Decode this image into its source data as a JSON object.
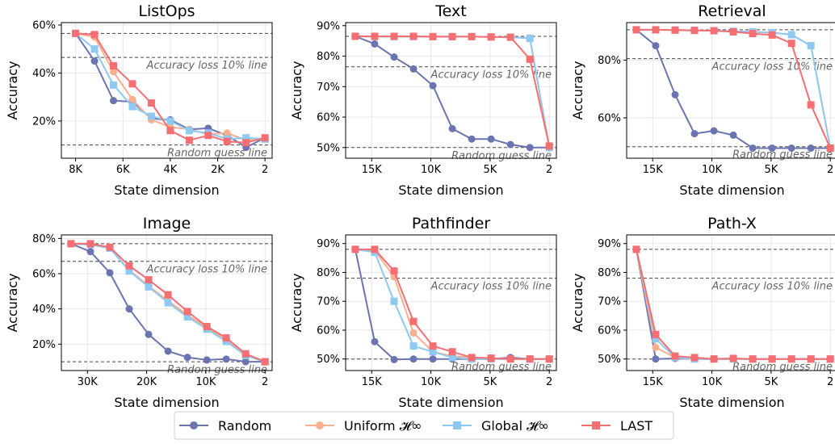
{
  "chart_data": [
    {
      "type": "line",
      "title": "ListOps",
      "xlabel": "State dimension",
      "ylabel": "Accuracy",
      "xlim": [
        8600,
        -300
      ],
      "ylim": [
        4.5,
        61
      ],
      "x_ticks": [
        8000,
        6000,
        4000,
        2000,
        2
      ],
      "x_tick_labels": [
        "8K",
        "6K",
        "4K",
        "2K",
        "2"
      ],
      "y_ticks": [
        20,
        40,
        60
      ],
      "y_tick_labels": [
        "20%",
        "40%",
        "60%"
      ],
      "reference_lines": [
        {
          "y": 56.5,
          "label": ""
        },
        {
          "y": 46.5,
          "label": "Accuracy loss 10% line"
        },
        {
          "y": 10,
          "label": "Random guess line"
        }
      ],
      "x": [
        8000,
        7200,
        6400,
        5600,
        4800,
        4000,
        3200,
        2400,
        1600,
        800,
        2
      ],
      "series": [
        {
          "name": "Random",
          "values": [
            56.5,
            45,
            28.5,
            28,
            21,
            20.5,
            16.5,
            17,
            14,
            9,
            13
          ]
        },
        {
          "name": "Uniform",
          "values": [
            56.5,
            55,
            40.5,
            29,
            20.5,
            17.5,
            16.5,
            14.5,
            15,
            12,
            12.5
          ]
        },
        {
          "name": "Global",
          "values": [
            56.5,
            50,
            35,
            26,
            22,
            20,
            16,
            15,
            12.5,
            13,
            12.5
          ]
        },
        {
          "name": "LAST",
          "values": [
            56.5,
            56,
            43,
            35.5,
            27.5,
            16,
            12,
            14,
            11.5,
            11,
            13
          ]
        }
      ]
    },
    {
      "type": "line",
      "title": "Text",
      "xlabel": "State dimension",
      "ylabel": "Accuracy",
      "xlim": [
        17200,
        -600
      ],
      "ylim": [
        46.5,
        91
      ],
      "x_ticks": [
        15000,
        10000,
        5000,
        2
      ],
      "x_tick_labels": [
        "15K",
        "10K",
        "5K",
        "2"
      ],
      "y_ticks": [
        50,
        60,
        70,
        80,
        90
      ],
      "y_tick_labels": [
        "50%",
        "60%",
        "70%",
        "80%",
        "90%"
      ],
      "reference_lines": [
        {
          "y": 86.5,
          "label": ""
        },
        {
          "y": 76.5,
          "label": "Accuracy loss 10% line"
        },
        {
          "y": 50,
          "label": "Random guess line"
        }
      ],
      "x": [
        16384,
        14746,
        13107,
        11469,
        9830,
        8192,
        6554,
        4915,
        3277,
        1638,
        2
      ],
      "series": [
        {
          "name": "Random",
          "values": [
            86.5,
            84,
            79.7,
            75.8,
            70.3,
            56.2,
            52.8,
            52.8,
            51,
            50,
            50
          ]
        },
        {
          "name": "Uniform",
          "values": [
            86.5,
            86.4,
            86.4,
            86.4,
            86.4,
            86.4,
            86.4,
            86.3,
            86.2,
            86,
            50
          ]
        },
        {
          "name": "Global",
          "values": [
            86.5,
            86.4,
            86.4,
            86.4,
            86.4,
            86.4,
            86.4,
            86.3,
            86.2,
            85.8,
            50
          ]
        },
        {
          "name": "LAST",
          "values": [
            86.5,
            86.5,
            86.5,
            86.5,
            86.4,
            86.4,
            86.4,
            86.3,
            86.2,
            79,
            50.5
          ]
        }
      ]
    },
    {
      "type": "line",
      "title": "Retrieval",
      "xlabel": "State dimension",
      "ylabel": "Accuracy",
      "xlim": [
        17200,
        -600
      ],
      "ylim": [
        46,
        93
      ],
      "x_ticks": [
        15000,
        10000,
        5000,
        2
      ],
      "x_tick_labels": [
        "15K",
        "10K",
        "5K",
        "2"
      ],
      "y_ticks": [
        60,
        80
      ],
      "y_tick_labels": [
        "60%",
        "80%"
      ],
      "reference_lines": [
        {
          "y": 90.5,
          "label": ""
        },
        {
          "y": 80.5,
          "label": "Accuracy loss 10% line"
        },
        {
          "y": 50,
          "label": "Random guess line"
        }
      ],
      "x": [
        16384,
        14746,
        13107,
        11469,
        9830,
        8192,
        6554,
        4915,
        3277,
        1638,
        2
      ],
      "series": [
        {
          "name": "Random",
          "values": [
            90.5,
            85,
            68,
            54.5,
            55.5,
            54,
            49.5,
            49.5,
            49.5,
            49.5,
            49.5
          ]
        },
        {
          "name": "Uniform",
          "values": [
            90.5,
            90.5,
            90.4,
            90.3,
            90.2,
            90,
            89.8,
            89.5,
            88.8,
            85,
            49.5
          ]
        },
        {
          "name": "Global",
          "values": [
            90.5,
            90.5,
            90.4,
            90.3,
            90.2,
            90,
            89.8,
            89.5,
            88.8,
            85,
            49.5
          ]
        },
        {
          "name": "LAST",
          "values": [
            90.5,
            90.5,
            90.4,
            90.3,
            90.2,
            89.8,
            89.2,
            88.7,
            85.8,
            64.5,
            49.5
          ]
        }
      ]
    },
    {
      "type": "line",
      "title": "Image",
      "xlabel": "State dimension",
      "ylabel": "Accuracy",
      "xlim": [
        34400,
        -1200
      ],
      "ylim": [
        5,
        82
      ],
      "x_ticks": [
        30000,
        20000,
        10000,
        2
      ],
      "x_tick_labels": [
        "30K",
        "20K",
        "10K",
        "2"
      ],
      "y_ticks": [
        20,
        40,
        60,
        80
      ],
      "y_tick_labels": [
        "20%",
        "40%",
        "60%",
        "80%"
      ],
      "reference_lines": [
        {
          "y": 77,
          "label": ""
        },
        {
          "y": 67,
          "label": "Accuracy loss 10% line"
        },
        {
          "y": 10,
          "label": "Random guess line"
        }
      ],
      "x": [
        32768,
        29491,
        26214,
        22938,
        19661,
        16384,
        13107,
        9830,
        6554,
        3277,
        2
      ],
      "series": [
        {
          "name": "Random",
          "values": [
            77,
            72.5,
            60.5,
            40,
            25.5,
            16,
            12.5,
            11,
            11.5,
            10,
            10
          ]
        },
        {
          "name": "Uniform",
          "values": [
            77,
            76.5,
            74.5,
            62,
            53,
            44.5,
            36.5,
            29.5,
            22,
            14,
            10
          ]
        },
        {
          "name": "Global",
          "values": [
            77,
            76.5,
            74.5,
            61.5,
            52.5,
            43.5,
            35.5,
            28.5,
            21.5,
            13.5,
            10
          ]
        },
        {
          "name": "LAST",
          "values": [
            77,
            77,
            75,
            64.5,
            56.5,
            48,
            38.5,
            30,
            23.5,
            14.5,
            10
          ]
        }
      ]
    },
    {
      "type": "line",
      "title": "Pathfinder",
      "xlabel": "State dimension",
      "ylabel": "Accuracy",
      "xlim": [
        17200,
        -600
      ],
      "ylim": [
        46,
        93
      ],
      "x_ticks": [
        15000,
        10000,
        5000,
        2
      ],
      "x_tick_labels": [
        "15K",
        "10K",
        "5K",
        "2"
      ],
      "y_ticks": [
        50,
        60,
        70,
        80,
        90
      ],
      "y_tick_labels": [
        "50%",
        "60%",
        "70%",
        "80%",
        "90%"
      ],
      "reference_lines": [
        {
          "y": 88,
          "label": ""
        },
        {
          "y": 78,
          "label": "Accuracy loss 10% line"
        },
        {
          "y": 50,
          "label": "Random guess line"
        }
      ],
      "x": [
        16384,
        14746,
        13107,
        11469,
        9830,
        8192,
        6554,
        4915,
        3277,
        1638,
        2
      ],
      "series": [
        {
          "name": "Random",
          "values": [
            88,
            56,
            49.8,
            50,
            50,
            50,
            50,
            50,
            50.5,
            50,
            50
          ]
        },
        {
          "name": "Uniform",
          "values": [
            88,
            87.5,
            78.5,
            59,
            52.5,
            51,
            50.5,
            50,
            50,
            50,
            50
          ]
        },
        {
          "name": "Global",
          "values": [
            88,
            87,
            70,
            54.5,
            52.5,
            50.5,
            50,
            50,
            50,
            50,
            50
          ]
        },
        {
          "name": "LAST",
          "values": [
            88,
            88,
            80.5,
            63,
            54.5,
            52.5,
            50.5,
            50.3,
            50,
            50,
            50
          ]
        }
      ]
    },
    {
      "type": "line",
      "title": "Path-X",
      "xlabel": "State dimension",
      "ylabel": "Accuracy",
      "xlim": [
        17200,
        -600
      ],
      "ylim": [
        46,
        93
      ],
      "x_ticks": [
        15000,
        10000,
        5000,
        2
      ],
      "x_tick_labels": [
        "15K",
        "10K",
        "5K",
        "2"
      ],
      "y_ticks": [
        50,
        60,
        70,
        80,
        90
      ],
      "y_tick_labels": [
        "50%",
        "60%",
        "70%",
        "80%",
        "90%"
      ],
      "reference_lines": [
        {
          "y": 88,
          "label": ""
        },
        {
          "y": 78,
          "label": "Accuracy loss 10% line"
        },
        {
          "y": 50,
          "label": "Random guess line"
        }
      ],
      "x": [
        16384,
        14746,
        13107,
        11469,
        9830,
        8192,
        6554,
        4915,
        3277,
        1638,
        2
      ],
      "series": [
        {
          "name": "Random",
          "values": [
            88,
            50,
            50.2,
            50,
            50,
            50,
            50,
            50,
            50,
            50,
            50
          ]
        },
        {
          "name": "Uniform",
          "values": [
            88,
            54,
            50.5,
            50,
            50,
            50,
            50,
            50,
            50,
            50,
            50
          ]
        },
        {
          "name": "Global",
          "values": [
            88,
            57,
            50.5,
            50,
            50,
            50,
            50,
            50,
            50,
            50,
            50
          ]
        },
        {
          "name": "LAST",
          "values": [
            88,
            58.5,
            51,
            50.5,
            50,
            50.2,
            50,
            50,
            50,
            50,
            50
          ]
        }
      ]
    }
  ],
  "legend": {
    "placement": "bottom-center",
    "entries": [
      {
        "name": "Random",
        "label": "Random",
        "color": "#6a74b0",
        "marker": "circle"
      },
      {
        "name": "Uniform",
        "label": "Uniform 𝓗∞",
        "color": "#f7b08e",
        "marker": "circle"
      },
      {
        "name": "Global",
        "label": "Global 𝓗∞",
        "color": "#8ec9f2",
        "marker": "square"
      },
      {
        "name": "LAST",
        "label": "LAST",
        "color": "#f46e72",
        "marker": "square"
      }
    ]
  }
}
